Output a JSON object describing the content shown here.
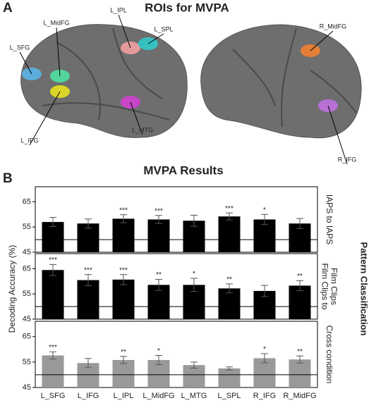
{
  "brain": {
    "panel_label": "A",
    "title": "ROIs for MVPA",
    "rois": [
      {
        "label": "L_SFG",
        "color": "#5ab4e6"
      },
      {
        "label": "L_MidFG",
        "color": "#4ee0a0"
      },
      {
        "label": "L_IPL",
        "color": "#f0a0a0"
      },
      {
        "label": "L_SPL",
        "color": "#30c8c8"
      },
      {
        "label": "L_IFG",
        "color": "#e6e020"
      },
      {
        "label": "L_MTG",
        "color": "#d040d0"
      },
      {
        "label": "R_MidFG",
        "color": "#f08030"
      },
      {
        "label": "R_IFG",
        "color": "#c070e0"
      }
    ]
  },
  "chart_data": {
    "type": "bar",
    "panel_label": "B",
    "title": "MVPA Results",
    "ylabel": "Decoding Accuracy (%)",
    "side_label": "Pattern Classification",
    "categories": [
      "L_SFG",
      "L_IFG",
      "L_IPL",
      "L_MidFG",
      "L_MTG",
      "L_SPL",
      "R_IFG",
      "R_MidFG"
    ],
    "ylim": [
      45,
      71
    ],
    "yticks": [
      45,
      55,
      65
    ],
    "reference_line": 50,
    "panels": [
      {
        "subtitle_lines": [
          "IAPS to IAPS"
        ],
        "color": "#000000",
        "values": [
          57,
          56.4,
          58.3,
          58,
          57.5,
          59.2,
          58,
          56.4
        ],
        "errors": [
          1.8,
          1.8,
          1.6,
          1.6,
          2.2,
          1.4,
          2.0,
          2.0
        ],
        "annotations": [
          null,
          null,
          "***",
          "***",
          null,
          "***",
          "*",
          null
        ]
      },
      {
        "subtitle_lines": [
          "Film Clips to",
          "Film Clips"
        ],
        "color": "#000000",
        "values": [
          64.5,
          60.5,
          60.7,
          58.6,
          58.6,
          57.2,
          56.2,
          58.3
        ],
        "errors": [
          2.2,
          2.2,
          2.0,
          2.2,
          2.6,
          1.8,
          2.2,
          2.0
        ],
        "annotations": [
          "***",
          "***",
          "***",
          "**",
          "*",
          "**",
          null,
          "**"
        ]
      },
      {
        "subtitle_lines": [
          "Cross condition"
        ],
        "color": "#999999",
        "values": [
          57.6,
          54.6,
          55.8,
          55.8,
          53.8,
          52.5,
          56.5,
          56
        ],
        "errors": [
          1.4,
          1.8,
          1.4,
          1.8,
          1.2,
          0.6,
          1.8,
          1.4
        ],
        "annotations": [
          "***",
          null,
          "**",
          "*",
          null,
          null,
          "*",
          "**"
        ]
      }
    ]
  }
}
